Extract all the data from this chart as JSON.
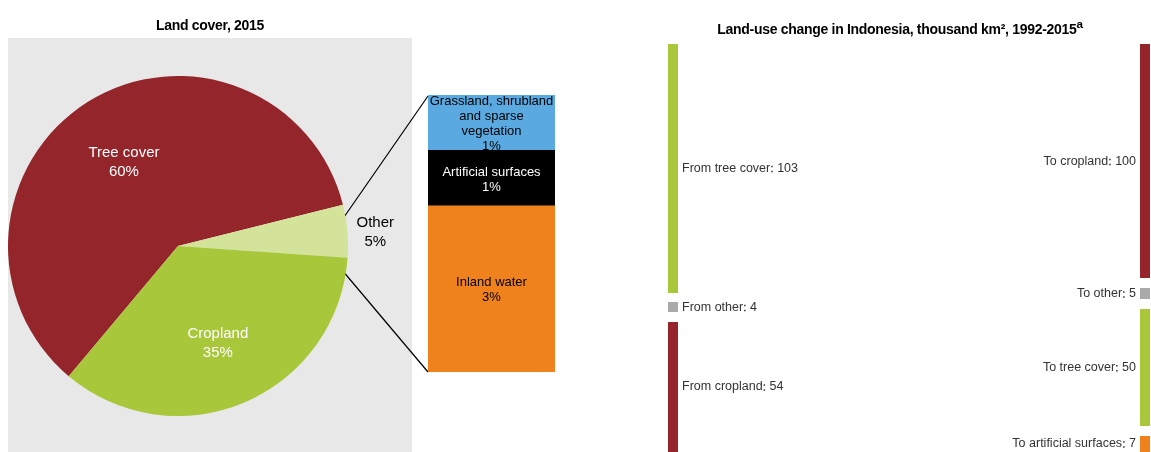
{
  "chart_data": [
    {
      "type": "pie",
      "title": "Land cover, 2015",
      "categories": [
        "Tree cover",
        "Other",
        "Cropland"
      ],
      "values": [
        60,
        5,
        35
      ],
      "value_labels": [
        "60%",
        "5%",
        "35%"
      ],
      "colors": [
        "#93252b",
        "#d3e39a",
        "#a8c73a"
      ]
    },
    {
      "type": "bar",
      "stacked": true,
      "categories": [
        null
      ],
      "series": [
        {
          "name": "Inland water",
          "color": "#f0821e",
          "values": [
            3
          ],
          "value_labels": [
            "3%"
          ]
        },
        {
          "name": "Artificial surfaces",
          "color": "#000000",
          "values": [
            1
          ],
          "value_labels": [
            "1%"
          ]
        },
        {
          "name": "Grassland, shrubland and sparse vegetation",
          "color": "#5aa9e0",
          "values": [
            1
          ],
          "value_labels": [
            "1%"
          ]
        }
      ]
    },
    {
      "type": "other",
      "title": "Land-use change in Indonesia, thousand km², 1992-2015$^{a}$",
      "categories": [
        "From tree cover",
        "From other",
        "From cropland"
      ],
      "values": [
        103,
        4,
        54
      ],
      "data_labels": true,
      "colors": [
        "#a8c73a",
        "#aaaaaa",
        "#93252b"
      ]
    },
    {
      "type": "other",
      "categories": [
        "To cropland",
        "To other",
        "To tree cover",
        "To artificial surfaces"
      ],
      "values": [
        100,
        5,
        50,
        7
      ],
      "data_labels": true,
      "colors": [
        "#93252b",
        "#aaaaaa",
        "#a8c73a",
        "#f0821e"
      ]
    }
  ]
}
